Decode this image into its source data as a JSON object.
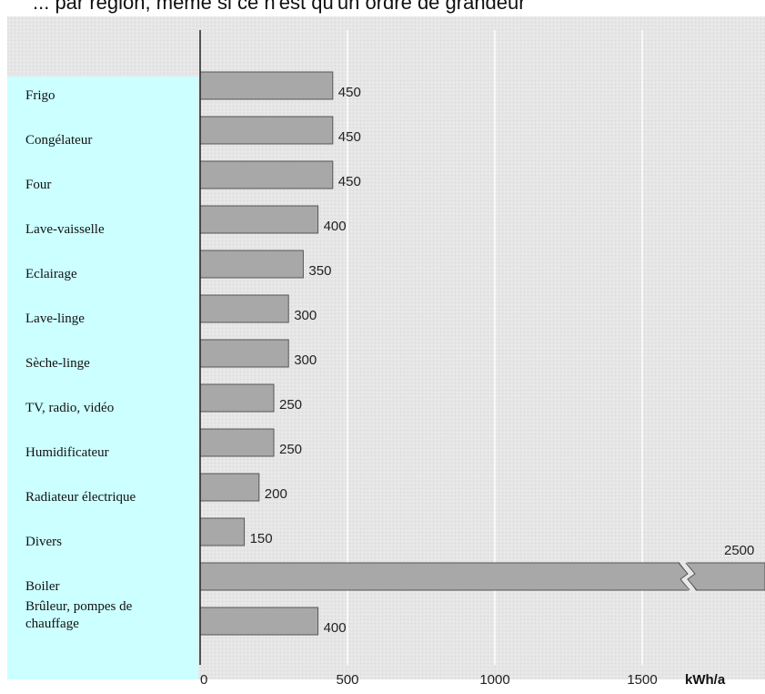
{
  "title": "... par région, même si ce n'est qu'un ordre de grandeur",
  "chart_data": {
    "type": "bar",
    "orientation": "horizontal",
    "categories": [
      "Frigo",
      "Congélateur",
      "Four",
      "Lave-vaisselle",
      "Eclairage",
      "Lave-linge",
      "Sèche-linge",
      "TV, radio, vidéo",
      "Humidificateur",
      "Radiateur électrique",
      "Divers",
      "Boiler",
      "Brûleur, pompes de chauffage"
    ],
    "values": [
      450,
      450,
      450,
      400,
      350,
      300,
      300,
      250,
      250,
      200,
      150,
      2500,
      400
    ],
    "value_labels": [
      "450",
      "450",
      "450",
      "400",
      "350",
      "300",
      "300",
      "250",
      "250",
      "200",
      "150",
      "2500",
      "400"
    ],
    "xlim": [
      0,
      2500
    ],
    "xticks": [
      "0",
      "500",
      "1000",
      "1500"
    ],
    "x_unit": "kWh/a",
    "axis_break_on": "Boiler",
    "colors": {
      "bar_fill": "#a8a8a8",
      "bar_stroke": "#555555",
      "label_panel": "#ccffff",
      "plot_bg": "#e8e8e8",
      "gridline": "#ffffff"
    }
  }
}
